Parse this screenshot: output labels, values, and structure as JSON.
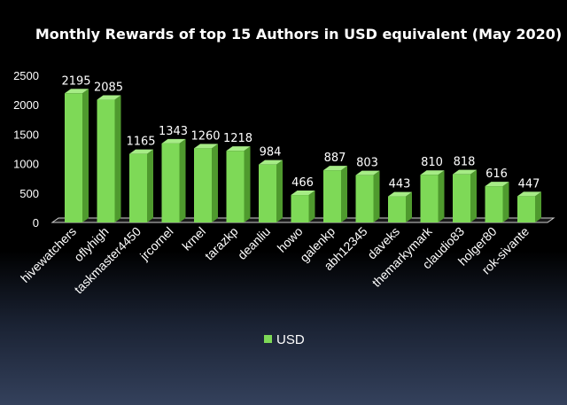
{
  "chart_data": {
    "type": "bar",
    "title": "Monthly Rewards of top 15 Authors in USD equivalent (May 2020)",
    "categories": [
      "hivewatchers",
      "oflyhigh",
      "taskmaster4450",
      "jrcornel",
      "krnel",
      "tarazkp",
      "deanliu",
      "howo",
      "galenkp",
      "abh12345",
      "daveks",
      "themarkymark",
      "claudio83",
      "holger80",
      "rok-sivante"
    ],
    "series": [
      {
        "name": "USD",
        "values": [
          2195,
          2085,
          1165,
          1343,
          1260,
          1218,
          984,
          466,
          887,
          803,
          443,
          810,
          818,
          616,
          447
        ]
      }
    ],
    "value_labels": [
      "2195",
      "2085",
      "1165",
      "1343",
      "1260",
      "1218",
      "984",
      "466",
      "887",
      "803",
      "443",
      "810",
      "818",
      "616",
      "447"
    ],
    "yticks": [
      "0",
      "500",
      "1000",
      "1500",
      "2000",
      "2500"
    ],
    "ylim": [
      0,
      2500
    ],
    "legend_position": "bottom",
    "grid": false,
    "bar_color": "#7ED957",
    "bar_side_color": "#4f9a2e",
    "bar_top_color": "#a6ec86"
  }
}
